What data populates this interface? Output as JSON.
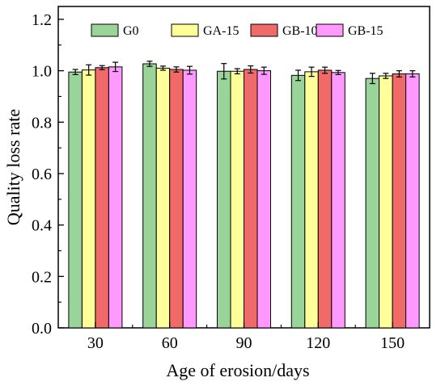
{
  "chart_data": {
    "type": "bar",
    "title": "",
    "xlabel": "Age of erosion/days",
    "ylabel": "Quality loss rate",
    "categories": [
      "30",
      "60",
      "90",
      "120",
      "150"
    ],
    "ylim": [
      0,
      1.25
    ],
    "yticks": [
      "0.0",
      "0.2",
      "0.4",
      "0.6",
      "0.8",
      "1.0",
      "1.2"
    ],
    "grid": false,
    "legend_position": "top",
    "series": [
      {
        "name": "G0",
        "color": "#99d499",
        "values": [
          0.995,
          1.027,
          0.998,
          0.982,
          0.97
        ],
        "errors": [
          0.01,
          0.01,
          0.03,
          0.02,
          0.02
        ]
      },
      {
        "name": "GA-15",
        "color": "#ffff99",
        "values": [
          1.003,
          1.01,
          0.998,
          0.996,
          0.98
        ],
        "errors": [
          0.02,
          0.008,
          0.01,
          0.018,
          0.01
        ]
      },
      {
        "name": "GB-10",
        "color": "#f06a6a",
        "values": [
          1.012,
          1.005,
          1.005,
          1.002,
          0.988
        ],
        "errors": [
          0.008,
          0.01,
          0.014,
          0.012,
          0.012
        ]
      },
      {
        "name": "GB-15",
        "color": "#ff99ff",
        "values": [
          1.015,
          1.002,
          1.0,
          0.993,
          0.988
        ],
        "errors": [
          0.018,
          0.015,
          0.014,
          0.008,
          0.012
        ]
      }
    ]
  }
}
